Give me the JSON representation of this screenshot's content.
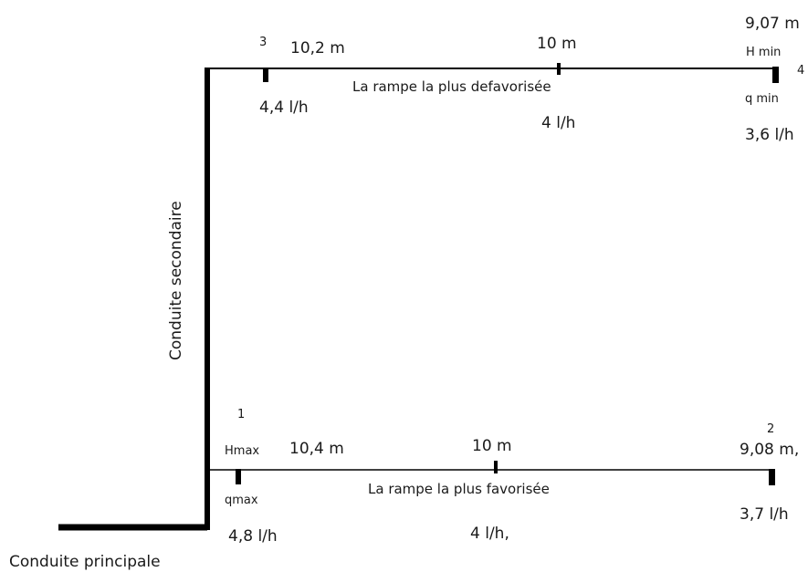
{
  "diagram": {
    "main_pipe_label": "Conduite principale",
    "secondary_pipe_label": "Conduite secondaire",
    "top_ramp": {
      "label": "La rampe la plus defavorisée",
      "node_start": "3",
      "node_end": "4",
      "head_start": "10,2 m",
      "head_mid": "10 m",
      "head_end": "9,07 m",
      "head_end_tag": "H min",
      "flow_start": "4,4 l/h",
      "flow_mid": "4 l/h",
      "flow_end": "3,6 l/h",
      "flow_end_tag": "q min"
    },
    "bottom_ramp": {
      "label": "La rampe la plus favorisée",
      "node_start": "1",
      "node_end": "2",
      "head_start": "10,4 m",
      "head_start_tag": "Hmax",
      "head_mid": "10 m",
      "head_end": "9,08 m,",
      "flow_start": "4,8 l/h",
      "flow_start_tag": "qmax",
      "flow_mid": "4 l/h,",
      "flow_end": "3,7 l/h"
    }
  }
}
